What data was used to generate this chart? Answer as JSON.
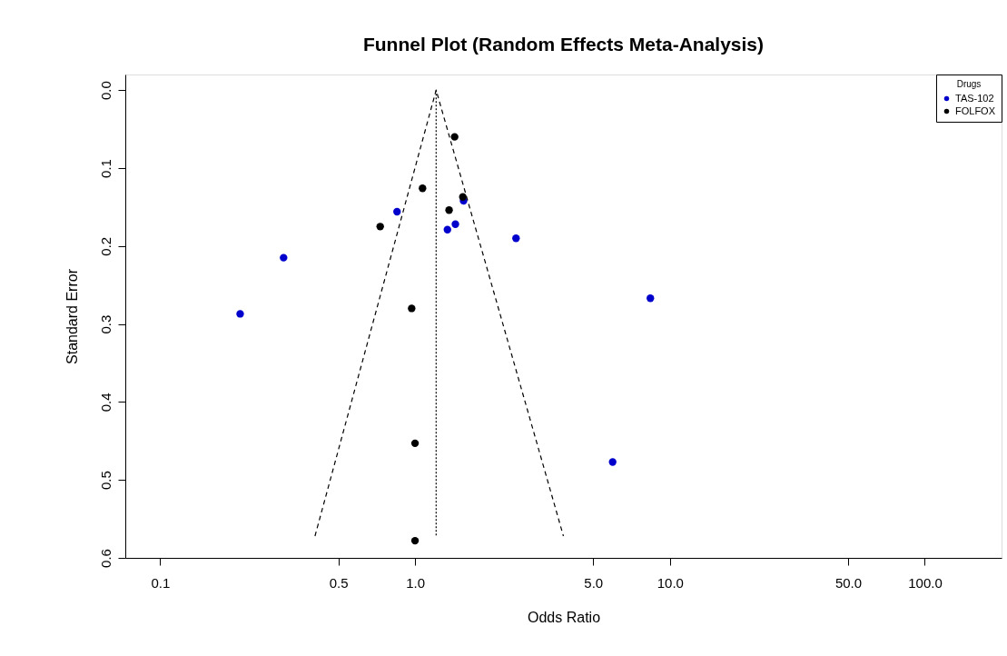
{
  "chart_data": {
    "type": "scatter",
    "title": "Funnel Plot (Random Effects Meta-Analysis)",
    "xlabel": "Odds Ratio",
    "ylabel": "Standard Error",
    "legend_title": "Drugs",
    "log": "x",
    "grid": false,
    "legend": "top right",
    "marker": "circle",
    "xlim": [
      0.073,
      200
    ],
    "xticks": [
      0.1,
      0.5,
      {
        "value": 1,
        "label": "1.0"
      },
      {
        "value": 5,
        "label": "5.0"
      },
      {
        "value": 10,
        "label": "10.0"
      },
      {
        "value": 50,
        "label": "50.0"
      },
      {
        "value": 100,
        "label": "100.0"
      }
    ],
    "ylim": [
      0.6,
      -0.02
    ],
    "yticks": [
      {
        "value": 0,
        "label": "0.0"
      },
      0.1,
      0.2,
      0.3,
      0.4,
      0.5,
      {
        "value": 0.6,
        "label": "0.6"
      }
    ],
    "series": [
      {
        "name": "TAS-102",
        "color": "#0000cc",
        "x": [
          1.55,
          0.85,
          1.44,
          1.34,
          2.49,
          0.305,
          0.206,
          8.38,
          5.96
        ],
        "values": [
          0.142,
          0.156,
          0.172,
          0.179,
          0.19,
          0.215,
          0.287,
          0.267,
          0.477
        ]
      },
      {
        "name": "FOLFOX",
        "color": "#000000",
        "x": [
          1.43,
          1.07,
          1.54,
          1.36,
          0.73,
          0.97,
          1.0,
          1.0
        ],
        "values": [
          0.06,
          0.126,
          0.137,
          0.154,
          0.175,
          0.28,
          0.453,
          0.578
        ]
      },
      {
        "type": "line",
        "marker": "none",
        "color": "#000000",
        "line_style": "dashed",
        "x": [
          0.405,
          1.21,
          3.82
        ],
        "values": [
          0.572,
          0,
          0.572
        ]
      },
      {
        "type": "line",
        "marker": "none",
        "color": "#000000",
        "line_style": "dotted",
        "x": [
          1.21,
          1.21
        ],
        "values": [
          0,
          0.572
        ]
      }
    ]
  }
}
